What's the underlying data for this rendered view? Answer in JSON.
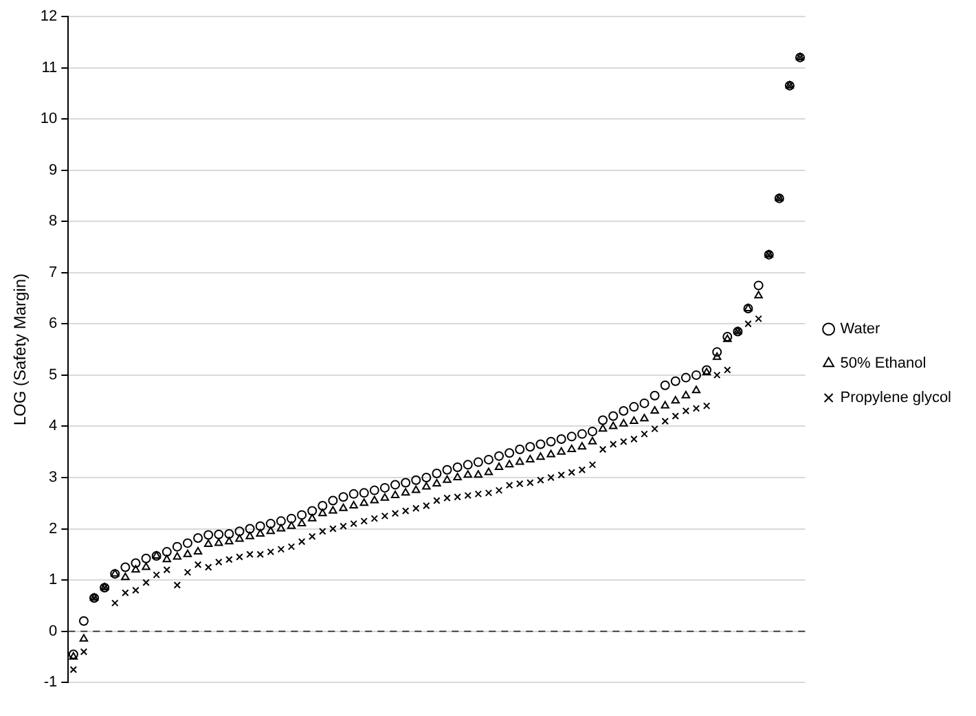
{
  "chart_data": {
    "type": "scatter",
    "ylabel": "LOG (Safety Margin)",
    "categories": [
      null,
      null,
      null,
      null,
      null,
      null,
      null,
      null,
      null,
      null,
      null,
      null,
      null,
      null,
      null,
      null,
      null,
      null,
      null,
      null,
      null,
      null,
      null,
      null,
      null,
      null,
      null,
      null,
      null,
      null,
      null,
      null,
      null,
      null,
      null,
      null,
      null,
      null,
      null,
      null,
      null,
      null,
      null,
      null,
      null,
      null,
      null,
      null,
      null,
      null,
      null,
      null,
      null,
      null,
      null,
      null,
      null,
      null,
      null,
      null,
      null,
      null,
      null,
      null,
      null,
      null,
      null,
      null,
      null,
      null,
      null
    ],
    "series": [
      {
        "name": "Water",
        "color": "#000000",
        "marker": "circle",
        "values": [
          -0.45,
          0.2,
          0.65,
          0.85,
          1.12,
          1.25,
          1.33,
          1.42,
          1.47,
          1.55,
          1.65,
          1.72,
          1.82,
          1.88,
          1.89,
          1.9,
          1.95,
          2.0,
          2.05,
          2.1,
          2.15,
          2.2,
          2.27,
          2.35,
          2.45,
          2.55,
          2.62,
          2.68,
          2.7,
          2.75,
          2.8,
          2.86,
          2.9,
          2.95,
          3.0,
          3.08,
          3.15,
          3.2,
          3.25,
          3.3,
          3.35,
          3.42,
          3.48,
          3.55,
          3.6,
          3.65,
          3.7,
          3.75,
          3.8,
          3.85,
          3.9,
          4.12,
          4.2,
          4.3,
          4.38,
          4.45,
          4.6,
          4.8,
          4.88,
          4.95,
          5.0,
          5.1,
          5.45,
          5.75,
          5.85,
          6.3,
          6.75,
          7.35,
          8.45,
          10.65,
          11.2
        ]
      },
      {
        "name": "50% Ethanol",
        "color": "#000000",
        "marker": "triangle",
        "values": [
          -0.5,
          -0.15,
          0.65,
          0.85,
          1.12,
          1.05,
          1.2,
          1.25,
          1.47,
          1.4,
          1.45,
          1.5,
          1.55,
          1.7,
          1.72,
          1.75,
          1.8,
          1.85,
          1.9,
          1.95,
          2.0,
          2.05,
          2.1,
          2.2,
          2.3,
          2.35,
          2.4,
          2.45,
          2.5,
          2.55,
          2.6,
          2.65,
          2.7,
          2.75,
          2.82,
          2.88,
          2.95,
          3.0,
          3.05,
          3.05,
          3.1,
          3.2,
          3.25,
          3.3,
          3.35,
          3.4,
          3.45,
          3.5,
          3.55,
          3.6,
          3.7,
          3.95,
          4.0,
          4.05,
          4.1,
          4.15,
          4.3,
          4.4,
          4.5,
          4.6,
          4.7,
          5.05,
          5.35,
          5.7,
          5.85,
          6.3,
          6.55,
          7.35,
          8.45,
          10.65,
          11.2
        ]
      },
      {
        "name": "Propylene glycol",
        "color": "#000000",
        "marker": "cross",
        "values": [
          -0.75,
          -0.4,
          0.65,
          0.85,
          0.55,
          0.75,
          0.8,
          0.95,
          1.1,
          1.2,
          0.9,
          1.15,
          1.3,
          1.25,
          1.35,
          1.4,
          1.45,
          1.5,
          1.5,
          1.55,
          1.6,
          1.65,
          1.75,
          1.85,
          1.95,
          2.0,
          2.05,
          2.1,
          2.15,
          2.2,
          2.25,
          2.3,
          2.35,
          2.4,
          2.45,
          2.55,
          2.6,
          2.62,
          2.65,
          2.68,
          2.7,
          2.75,
          2.85,
          2.88,
          2.9,
          2.95,
          3.0,
          3.05,
          3.1,
          3.15,
          3.25,
          3.55,
          3.65,
          3.7,
          3.75,
          3.85,
          3.95,
          4.1,
          4.2,
          4.3,
          4.35,
          4.4,
          5.0,
          5.1,
          5.85,
          6.0,
          6.1,
          7.35,
          8.45,
          10.65,
          11.2
        ]
      }
    ],
    "ylim": [
      -1,
      12
    ],
    "yticks": [
      -1,
      0,
      1,
      2,
      3,
      4,
      5,
      6,
      7,
      8,
      9,
      10,
      11,
      12
    ],
    "grid": "y",
    "legend": "right",
    "ref_lines": [
      {
        "axis": "y",
        "value": 0,
        "color": "#404040",
        "line_style": "dashed"
      }
    ]
  }
}
